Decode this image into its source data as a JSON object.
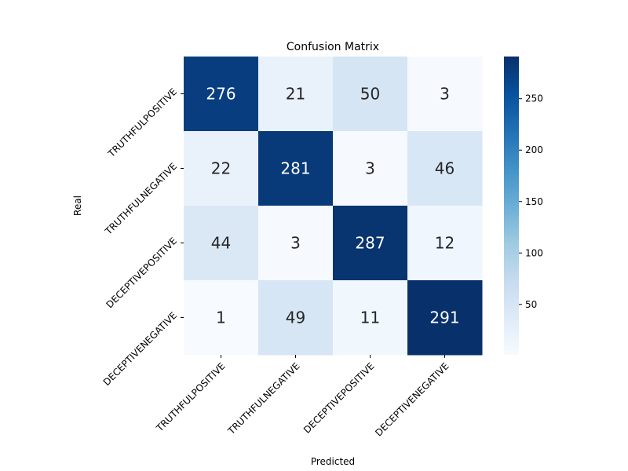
{
  "chart_data": {
    "type": "heatmap",
    "title": "Confusion Matrix",
    "xlabel": "Predicted",
    "ylabel": "Real",
    "x_categories": [
      "TRUTHFULPOSITIVE",
      "TRUTHFULNEGATIVE",
      "DECEPTIVEPOSITIVE",
      "DECEPTIVENEGATIVE"
    ],
    "y_categories": [
      "TRUTHFULPOSITIVE",
      "TRUTHFULNEGATIVE",
      "DECEPTIVEPOSITIVE",
      "DECEPTIVENEGATIVE"
    ],
    "values": [
      [
        276,
        21,
        50,
        3
      ],
      [
        22,
        281,
        3,
        46
      ],
      [
        44,
        3,
        287,
        12
      ],
      [
        1,
        49,
        11,
        291
      ]
    ],
    "colorscale": "Blues",
    "colorbar": {
      "range": [
        1,
        291
      ],
      "ticks": [
        50,
        100,
        150,
        200,
        250
      ]
    }
  }
}
